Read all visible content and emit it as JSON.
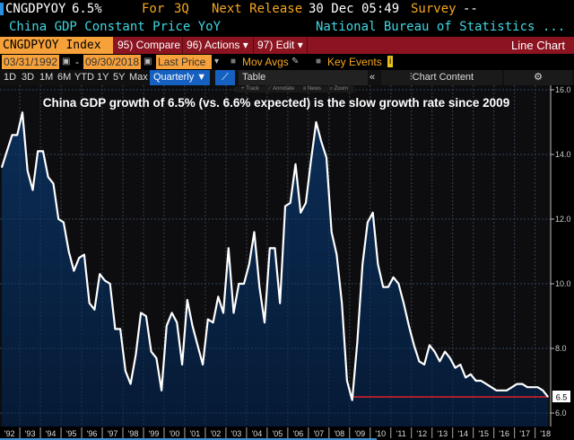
{
  "header": {
    "ticker": "CNGDPYOY",
    "value": "6.5%",
    "period_label": "For",
    "period": "3Q",
    "next_release_label": "Next Release",
    "next_release": "30 Dec 05:49",
    "survey_label": "Survey",
    "survey": "--",
    "description": "China GDP Constant Price YoY",
    "source": "National Bureau of Statistics ..."
  },
  "toolbar": {
    "index": "CNGDPYOY Index",
    "compare": "95) Compare",
    "actions": "96) Actions ▾",
    "edit": "97) Edit ▾",
    "chart_type": "Line Chart",
    "start_date": "03/31/1992",
    "end_date": "09/30/2018",
    "date_sep": "-",
    "field": "Last Price",
    "mov_avgs": "Mov Avgs",
    "key_events": "Key Events",
    "periods": [
      "1D",
      "3D",
      "1M",
      "6M",
      "YTD",
      "1Y",
      "5Y",
      "Max"
    ],
    "frequency": "Quarterly ▼",
    "table": "Table",
    "collapse": "«",
    "chart_content": "Chart Content",
    "chart_tools": [
      "+ Track",
      "⟋ Annotate",
      "≡ News",
      "⌕ Zoom"
    ]
  },
  "colors": {
    "line": "#ffffff",
    "fill_top": "#0b2d56",
    "fill_bottom": "#061a35",
    "reference": "#e0202a",
    "accent_orange": "#f7a13a",
    "bar_red": "#8b1420",
    "desc_cyan": "#3fd6e0"
  },
  "chart_data": {
    "type": "area",
    "title": "China GDP growth of 6.5% (vs. 6.6% expected) is the slow growth rate since 2009",
    "x_start": "1992Q1",
    "x_end": "2018Q3",
    "frequency": "quarterly",
    "xticks": [
      "'92",
      "'93",
      "'94",
      "'95",
      "'96",
      "'97",
      "'98",
      "'99",
      "'00",
      "'01",
      "'02",
      "'03",
      "'04",
      "'05",
      "'06",
      "'07",
      "'08",
      "'09",
      "'10",
      "'11",
      "'12",
      "'13",
      "'14",
      "'15",
      "'16",
      "'17",
      "'18"
    ],
    "yticks": [
      "16.0",
      "14.0",
      "12.0",
      "10.0",
      "8.0",
      "6.0"
    ],
    "ylim": [
      5.8,
      16.1
    ],
    "y_axis_side": "right",
    "grid": true,
    "values": [
      13.6,
      14.1,
      14.6,
      14.6,
      15.3,
      13.5,
      12.9,
      14.1,
      14.1,
      13.3,
      13.1,
      12.0,
      11.9,
      11.0,
      10.4,
      10.8,
      10.9,
      9.4,
      9.2,
      10.3,
      10.1,
      10.0,
      8.6,
      8.6,
      7.3,
      6.9,
      7.8,
      9.1,
      9.0,
      7.9,
      7.7,
      6.7,
      8.7,
      9.1,
      8.8,
      7.5,
      9.5,
      8.7,
      8.1,
      7.5,
      8.9,
      8.8,
      9.6,
      9.1,
      11.1,
      9.1,
      10.0,
      10.0,
      10.6,
      11.6,
      9.9,
      8.8,
      11.1,
      11.1,
      9.4,
      12.4,
      12.5,
      13.7,
      12.2,
      12.5,
      13.8,
      15.0,
      14.4,
      13.9,
      11.6,
      10.9,
      9.4,
      7.0,
      6.4,
      8.2,
      10.6,
      11.9,
      12.2,
      10.6,
      9.9,
      9.9,
      10.2,
      10.0,
      9.4,
      8.7,
      8.1,
      7.6,
      7.5,
      8.1,
      7.9,
      7.6,
      7.9,
      7.7,
      7.4,
      7.5,
      7.1,
      7.2,
      7.0,
      7.0,
      6.9,
      6.8,
      6.7,
      6.7,
      6.7,
      6.8,
      6.9,
      6.9,
      6.8,
      6.8,
      6.8,
      6.7,
      6.5
    ],
    "reference_line": {
      "value": 6.5,
      "from": "2009Q1",
      "to": "2018Q3"
    },
    "last_value_label": "6.5"
  }
}
